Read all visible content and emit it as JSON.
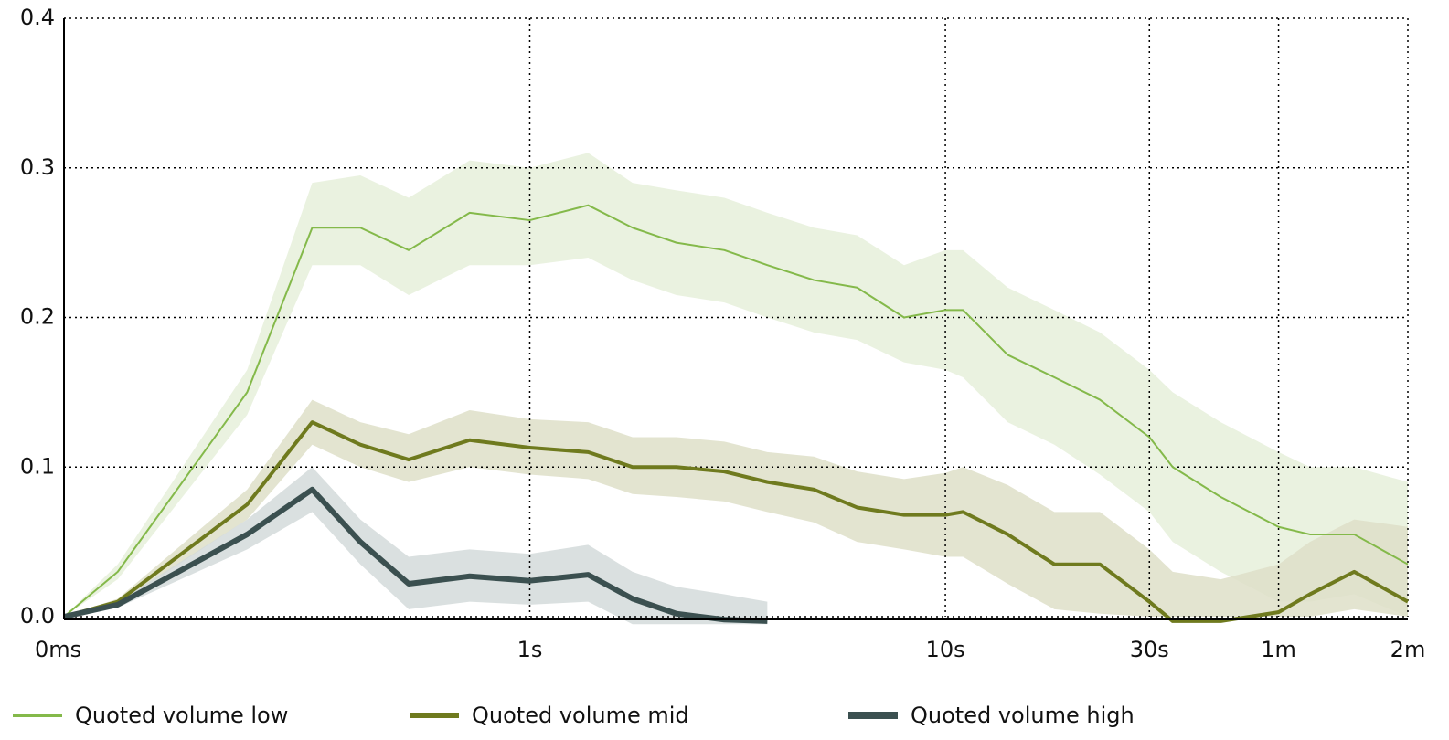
{
  "chart_data": {
    "type": "line",
    "x": [
      0,
      0.03,
      0.15,
      0.25,
      0.35,
      0.48,
      0.7,
      1,
      1.4,
      1.8,
      2.3,
      3,
      3.8,
      4.9,
      6.2,
      8,
      10,
      11,
      14,
      18,
      23,
      30,
      34,
      44,
      60,
      71,
      90,
      120
    ],
    "xlim": [
      0,
      120
    ],
    "xticks": [
      {
        "value": 0,
        "label": "0ms"
      },
      {
        "value": 1,
        "label": "1s"
      },
      {
        "value": 10,
        "label": "10s"
      },
      {
        "value": 30,
        "label": "30s"
      },
      {
        "value": 60,
        "label": "1m"
      },
      {
        "value": 120,
        "label": "2m"
      }
    ],
    "ylim": [
      0,
      0.4
    ],
    "yticks": [
      {
        "value": 0,
        "label": "0.0"
      },
      0.1,
      0.2,
      0.3,
      0.4
    ],
    "grid": true,
    "legend": "bottom",
    "series": [
      {
        "name": "Quoted volume low",
        "color": "#84b94a",
        "band_color": "#e6f0da",
        "width": 2,
        "values": [
          0,
          0.03,
          0.15,
          0.26,
          0.26,
          0.245,
          0.27,
          0.265,
          0.275,
          0.26,
          0.25,
          0.245,
          0.235,
          0.225,
          0.22,
          0.2,
          0.205,
          0.205,
          0.175,
          0.16,
          0.145,
          0.12,
          0.1,
          0.08,
          0.06,
          0.055,
          0.055,
          0.035
        ],
        "lower": [
          0,
          0.025,
          0.135,
          0.235,
          0.235,
          0.215,
          0.235,
          0.235,
          0.24,
          0.225,
          0.215,
          0.21,
          0.2,
          0.19,
          0.185,
          0.17,
          0.165,
          0.16,
          0.13,
          0.115,
          0.095,
          0.07,
          0.05,
          0.03,
          0.01,
          0.01,
          0.015,
          0
        ],
        "upper": [
          0,
          0.035,
          0.165,
          0.29,
          0.295,
          0.28,
          0.305,
          0.3,
          0.31,
          0.29,
          0.285,
          0.28,
          0.27,
          0.26,
          0.255,
          0.235,
          0.245,
          0.245,
          0.22,
          0.205,
          0.19,
          0.165,
          0.15,
          0.13,
          0.11,
          0.1,
          0.1,
          0.09
        ]
      },
      {
        "name": "Quoted volume mid",
        "color": "#6f7a1e",
        "band_color": "#dedfc8",
        "width": 4,
        "values": [
          0,
          0.01,
          0.075,
          0.13,
          0.115,
          0.105,
          0.118,
          0.113,
          0.11,
          0.1,
          0.1,
          0.097,
          0.09,
          0.085,
          0.073,
          0.068,
          0.068,
          0.07,
          0.055,
          0.035,
          0.035,
          0.01,
          -0.003,
          -0.003,
          0.003,
          0.015,
          0.03,
          0.01
        ],
        "lower": [
          0,
          0.008,
          0.065,
          0.115,
          0.1,
          0.09,
          0.1,
          0.095,
          0.092,
          0.082,
          0.08,
          0.077,
          0.07,
          0.063,
          0.05,
          0.045,
          0.04,
          0.04,
          0.022,
          0.005,
          0.002,
          0,
          0,
          0,
          0,
          0,
          0.005,
          0
        ],
        "upper": [
          0,
          0.012,
          0.085,
          0.145,
          0.13,
          0.122,
          0.138,
          0.132,
          0.13,
          0.12,
          0.12,
          0.117,
          0.11,
          0.107,
          0.097,
          0.092,
          0.096,
          0.1,
          0.088,
          0.07,
          0.07,
          0.045,
          0.03,
          0.025,
          0.035,
          0.05,
          0.065,
          0.06
        ]
      },
      {
        "name": "Quoted volume high",
        "color": "#3b5050",
        "band_color": "#d4dada",
        "width": 6,
        "values": [
          0,
          0.008,
          0.055,
          0.085,
          0.05,
          0.022,
          0.027,
          0.024,
          0.028,
          0.012,
          0.002,
          -0.002,
          -0.003,
          null,
          null,
          null,
          null,
          null,
          null,
          null,
          null,
          null,
          null,
          null,
          null,
          null,
          null,
          null
        ],
        "lower": [
          0,
          0.006,
          0.045,
          0.07,
          0.035,
          0.005,
          0.01,
          0.008,
          0.01,
          -0.005,
          -0.005,
          -0.005,
          -0.005,
          null,
          null,
          null,
          null,
          null,
          null,
          null,
          null,
          null,
          null,
          null,
          null,
          null,
          null,
          null
        ],
        "upper": [
          0,
          0.01,
          0.065,
          0.1,
          0.065,
          0.04,
          0.045,
          0.042,
          0.048,
          0.03,
          0.02,
          0.015,
          0.01,
          null,
          null,
          null,
          null,
          null,
          null,
          null,
          null,
          null,
          null,
          null,
          null,
          null,
          null,
          null
        ]
      }
    ]
  }
}
